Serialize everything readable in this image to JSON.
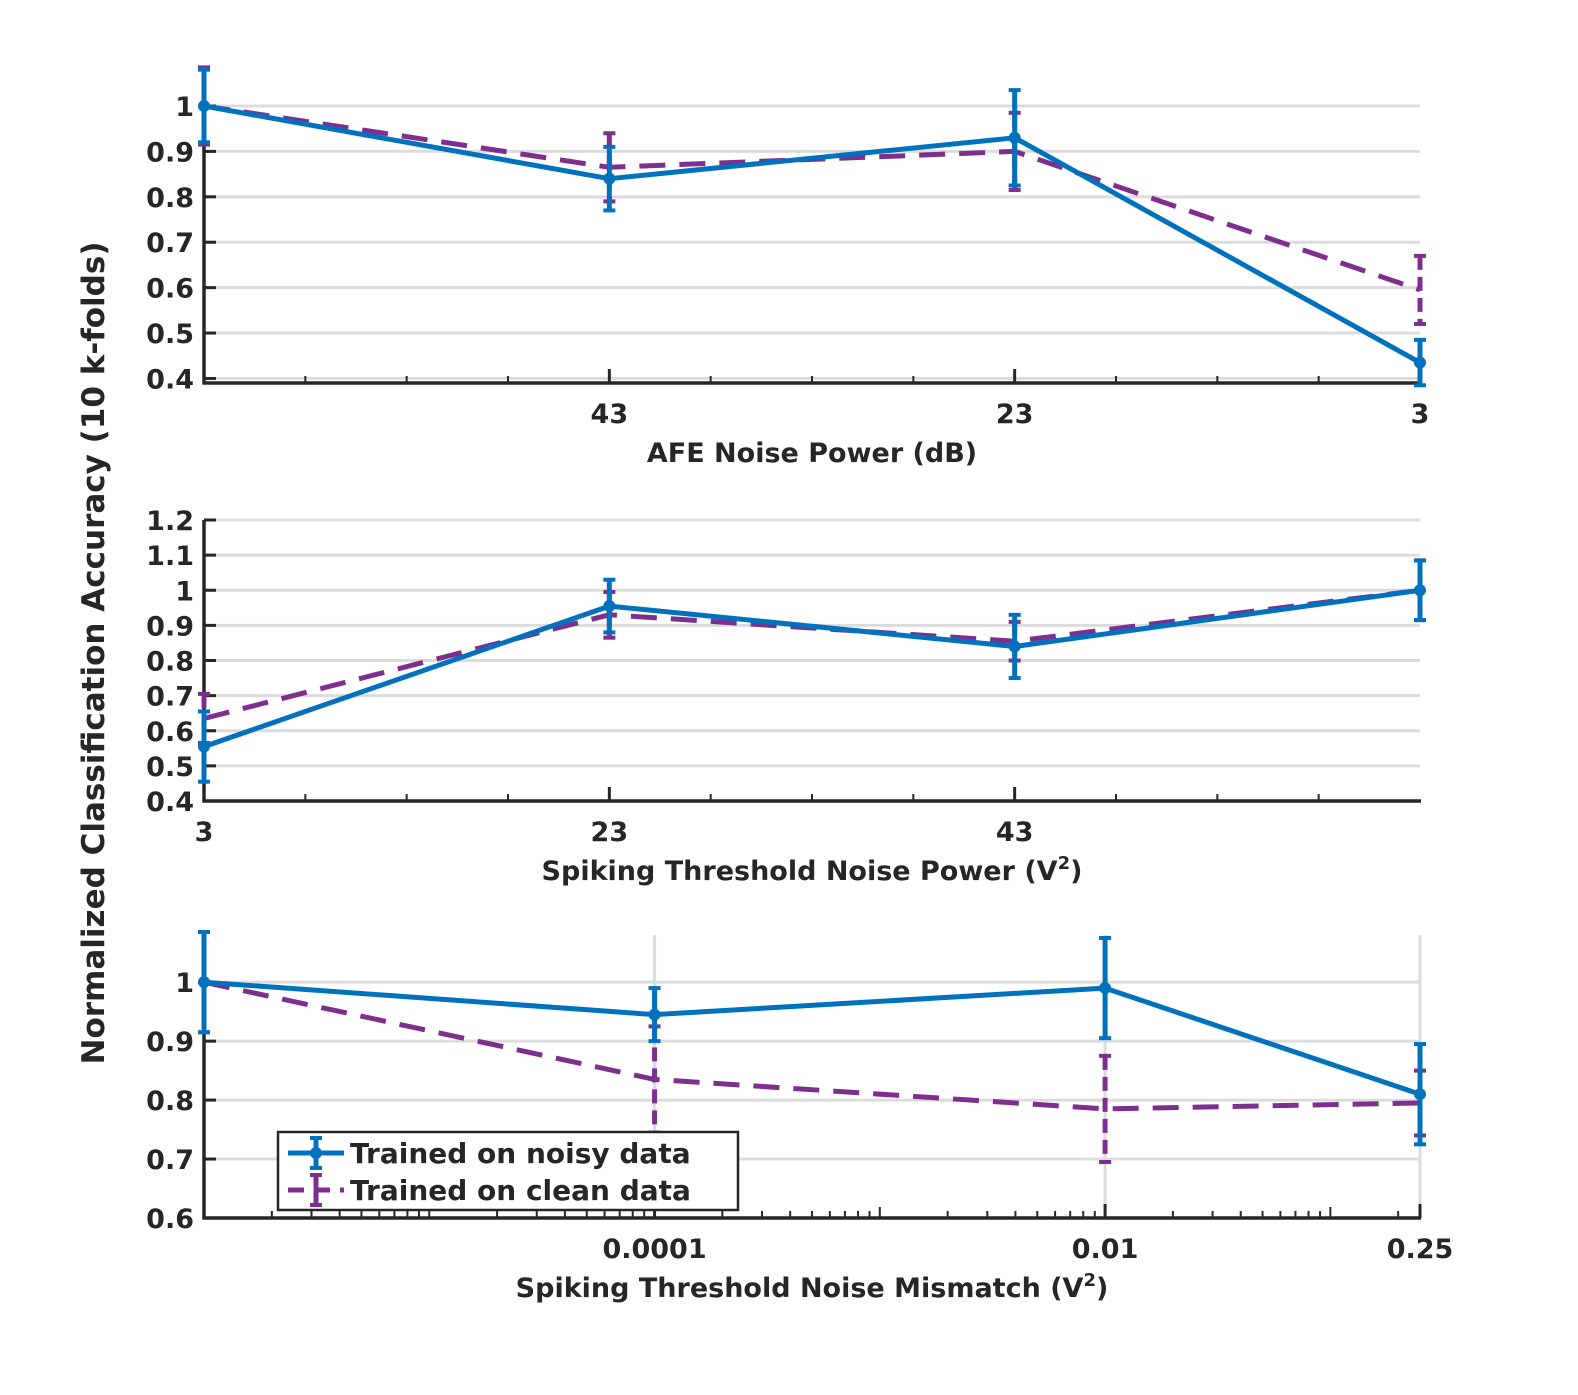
{
  "figure": {
    "ylabel": "Normalized Classification Accuracy (10 k-folds)"
  },
  "colors": {
    "noisy": "#0072BD",
    "clean": "#7E2F8E",
    "grid": "#dcdcdc",
    "axis": "#262626"
  },
  "legend": {
    "placement": "lower-left (bottom panel)",
    "entries": [
      "Trained on noisy data",
      "Trained on clean data"
    ]
  },
  "chart_data": [
    {
      "type": "line",
      "xlabel": "AFE Noise Power (dB)",
      "xlabel_sup": "",
      "xlabel_tail": "",
      "ylabel": "",
      "xscale": "linear",
      "xdir": "reversed",
      "xlim": [
        3,
        63
      ],
      "ylim": [
        0.39,
        1.0
      ],
      "xticks": [
        43,
        23,
        3
      ],
      "xticklabels": [
        "43",
        "23",
        "3"
      ],
      "yticks": [
        0.4,
        0.5,
        0.6,
        0.7,
        0.8,
        0.9,
        1
      ],
      "yticklabels": [
        "0.4",
        "0.5",
        "0.6",
        "0.7",
        "0.8",
        "0.9",
        "1"
      ],
      "grid": "y",
      "x": [
        63,
        43,
        23,
        3
      ],
      "series": [
        {
          "name": "Trained on noisy data",
          "values": [
            1.0,
            0.84,
            0.93,
            0.435
          ],
          "err": [
            0.08,
            0.07,
            0.105,
            0.05
          ]
        },
        {
          "name": "Trained on clean data",
          "values": [
            1.0,
            0.865,
            0.9,
            0.595
          ],
          "err": [
            0.085,
            0.075,
            0.085,
            0.075
          ]
        }
      ]
    },
    {
      "type": "line",
      "xlabel": "Spiking Threshold Noise Power (V",
      "xlabel_sup": "2",
      "xlabel_tail": ")",
      "ylabel": "",
      "xscale": "linear",
      "xdir": "normal",
      "xlim": [
        3,
        63
      ],
      "ylim": [
        0.4,
        1.2
      ],
      "xticks": [
        3,
        23,
        43
      ],
      "xticklabels": [
        "3",
        "23",
        "43"
      ],
      "yticks": [
        0.4,
        0.5,
        0.6,
        0.7,
        0.8,
        0.9,
        1,
        1.1,
        1.2
      ],
      "yticklabels": [
        "0.4",
        "0.5",
        "0.6",
        "0.7",
        "0.8",
        "0.9",
        "1",
        "1.1",
        "1.2"
      ],
      "grid": "y",
      "x": [
        3,
        23,
        43,
        63
      ],
      "series": [
        {
          "name": "Trained on noisy data",
          "values": [
            0.555,
            0.955,
            0.84,
            1.0
          ],
          "err": [
            0.1,
            0.075,
            0.09,
            0.085
          ]
        },
        {
          "name": "Trained on clean data",
          "values": [
            0.635,
            0.93,
            0.855,
            1.0
          ],
          "err": [
            0.07,
            0.065,
            0.055,
            0.085
          ]
        }
      ]
    },
    {
      "type": "line",
      "xlabel": "Spiking Threshold Noise Mismatch (V",
      "xlabel_sup": "2",
      "xlabel_tail": ")",
      "ylabel": "",
      "xscale": "log",
      "xdir": "normal",
      "xlim": [
        1e-06,
        0.25
      ],
      "ylim": [
        0.6,
        1.08
      ],
      "xticks": [
        0.0001,
        0.01,
        0.25
      ],
      "xticklabels": [
        "0.0001",
        "0.01",
        "0.25"
      ],
      "yticks": [
        0.6,
        0.7,
        0.8,
        0.9,
        1
      ],
      "yticklabels": [
        "0.6",
        "0.7",
        "0.8",
        "0.9",
        "1"
      ],
      "grid": "both",
      "x": [
        1e-06,
        0.0001,
        0.01,
        0.25
      ],
      "series": [
        {
          "name": "Trained on noisy data",
          "values": [
            1.0,
            0.945,
            0.99,
            0.81
          ],
          "err": [
            0.085,
            0.045,
            0.085,
            0.085
          ]
        },
        {
          "name": "Trained on clean data",
          "values": [
            1.0,
            0.835,
            0.785,
            0.795
          ],
          "err": [
            0.085,
            0.09,
            0.09,
            0.055
          ]
        }
      ]
    }
  ]
}
